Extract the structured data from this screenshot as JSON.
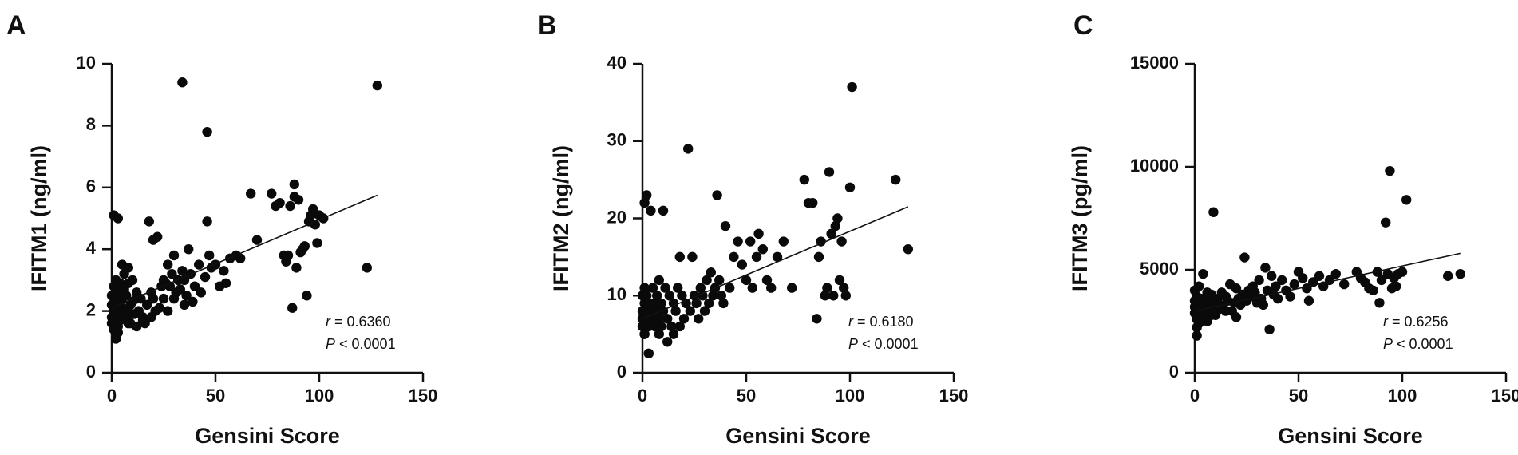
{
  "chart_data": [
    {
      "type": "scatter",
      "panel_label": "A",
      "xlabel": "Gensini Score",
      "ylabel": "IFITM1 (ng/ml)",
      "xlim": [
        0,
        150
      ],
      "ylim": [
        0,
        10
      ],
      "xticks": [
        0,
        50,
        100,
        150
      ],
      "yticks": [
        0,
        2,
        4,
        6,
        8,
        10
      ],
      "xtick_labels": [
        "0",
        "50",
        "100",
        "150"
      ],
      "ytick_labels": [
        "0",
        "2",
        "4",
        "6",
        "8",
        "10"
      ],
      "fit_line": {
        "x": [
          0,
          128
        ],
        "y": [
          2.1,
          5.75
        ]
      },
      "stat_r_symbol": "r",
      "stat_r_value": "= 0.6360",
      "stat_p_symbol": "P",
      "stat_p_value": "< 0.0001",
      "points": {
        "x": [
          0,
          0,
          0,
          0,
          1,
          1,
          1,
          1,
          2,
          2,
          2,
          2,
          3,
          3,
          3,
          4,
          4,
          4,
          5,
          5,
          5,
          6,
          6,
          7,
          7,
          8,
          8,
          8,
          9,
          9,
          10,
          10,
          11,
          12,
          12,
          13,
          14,
          15,
          16,
          17,
          18,
          19,
          19,
          20,
          20,
          21,
          22,
          23,
          24,
          25,
          25,
          26,
          27,
          27,
          28,
          29,
          30,
          30,
          31,
          32,
          33,
          34,
          35,
          35,
          36,
          37,
          38,
          39,
          40,
          42,
          43,
          45,
          46,
          47,
          48,
          50,
          52,
          54,
          55,
          57,
          60,
          62,
          67,
          70,
          77,
          79,
          81,
          83,
          84,
          85,
          86,
          87,
          88,
          88,
          89,
          90,
          91,
          92,
          93,
          94,
          95,
          96,
          97,
          98,
          99,
          100,
          102,
          123,
          128,
          34,
          46,
          3,
          5,
          8,
          10,
          12,
          15
        ],
        "y": [
          1.8,
          2.2,
          2.5,
          1.6,
          2.0,
          2.8,
          1.4,
          5.1,
          1.1,
          2.3,
          3.0,
          1.9,
          2.6,
          1.5,
          5.0,
          2.1,
          2.9,
          1.7,
          3.5,
          2.4,
          1.9,
          2.7,
          3.2,
          2.0,
          2.5,
          1.8,
          2.9,
          3.4,
          1.6,
          2.2,
          2.3,
          3.0,
          1.9,
          2.6,
          1.5,
          2.0,
          2.4,
          1.7,
          1.6,
          2.2,
          4.9,
          1.8,
          2.6,
          2.4,
          4.3,
          2.0,
          4.4,
          2.1,
          2.8,
          2.4,
          3.0,
          2.9,
          2.0,
          3.5,
          2.8,
          3.2,
          2.4,
          3.8,
          2.6,
          3.0,
          2.7,
          3.3,
          2.2,
          3.0,
          2.5,
          4.0,
          3.2,
          2.3,
          2.8,
          3.5,
          2.6,
          3.1,
          4.9,
          3.8,
          3.4,
          3.5,
          2.8,
          3.3,
          2.9,
          3.7,
          3.8,
          3.7,
          5.8,
          4.3,
          5.8,
          5.4,
          5.5,
          3.8,
          3.6,
          3.8,
          5.4,
          2.1,
          6.1,
          5.7,
          3.4,
          5.6,
          3.9,
          4.0,
          4.1,
          2.5,
          4.9,
          5.1,
          5.3,
          4.8,
          4.2,
          5.1,
          5.0,
          3.4,
          9.3,
          9.4,
          7.8,
          1.3,
          2.1,
          1.6,
          1.9,
          2.4,
          1.8
        ]
      }
    },
    {
      "type": "scatter",
      "panel_label": "B",
      "xlabel": "Gensini Score",
      "ylabel": "IFITM2 (ng/ml)",
      "xlim": [
        0,
        150
      ],
      "ylim": [
        0,
        40
      ],
      "xticks": [
        0,
        50,
        100,
        150
      ],
      "yticks": [
        0,
        10,
        20,
        30,
        40
      ],
      "xtick_labels": [
        "0",
        "50",
        "100",
        "150"
      ],
      "ytick_labels": [
        "0",
        "10",
        "20",
        "30",
        "40"
      ],
      "fit_line": {
        "x": [
          0,
          128
        ],
        "y": [
          7.0,
          21.5
        ]
      },
      "stat_r_symbol": "r",
      "stat_r_value": "= 0.6180",
      "stat_p_symbol": "P",
      "stat_p_value": "< 0.0001",
      "points": {
        "x": [
          0,
          0,
          0,
          0,
          1,
          1,
          1,
          1,
          2,
          2,
          2,
          2,
          3,
          3,
          3,
          4,
          4,
          5,
          5,
          6,
          6,
          7,
          7,
          8,
          8,
          9,
          10,
          10,
          11,
          12,
          13,
          14,
          15,
          16,
          17,
          18,
          19,
          20,
          21,
          22,
          23,
          24,
          25,
          26,
          27,
          28,
          29,
          30,
          31,
          32,
          33,
          34,
          35,
          36,
          37,
          38,
          39,
          40,
          42,
          44,
          46,
          48,
          50,
          52,
          53,
          55,
          56,
          58,
          60,
          62,
          65,
          68,
          72,
          78,
          80,
          82,
          84,
          85,
          86,
          88,
          89,
          90,
          91,
          92,
          93,
          94,
          95,
          96,
          97,
          98,
          100,
          101,
          122,
          128,
          1,
          2,
          3,
          8,
          9,
          12,
          15,
          18
        ],
        "y": [
          7,
          8,
          10,
          6,
          9,
          11,
          5,
          22,
          7,
          10,
          8,
          23,
          6,
          9,
          2.5,
          21,
          8,
          7,
          11,
          9,
          6,
          8,
          10,
          7,
          12,
          9,
          8,
          21,
          11,
          7,
          10,
          6,
          9,
          8,
          11,
          15,
          10,
          7,
          9,
          29,
          8,
          15,
          10,
          9,
          7,
          11,
          10,
          8,
          12,
          9,
          13,
          10,
          11,
          23,
          12,
          10,
          9,
          19,
          11,
          15,
          17,
          14,
          12,
          17,
          11,
          15,
          18,
          16,
          12,
          11,
          15,
          17,
          11,
          25,
          22,
          22,
          7,
          15,
          17,
          10,
          11,
          26,
          18,
          10,
          19,
          20,
          12,
          17,
          11,
          10,
          24,
          37,
          25,
          16,
          5,
          6,
          7,
          5,
          6,
          4,
          5,
          6
        ]
      }
    },
    {
      "type": "scatter",
      "panel_label": "C",
      "xlabel": "Gensini Score",
      "ylabel": "IFITM3 (pg/ml)",
      "xlim": [
        0,
        150
      ],
      "ylim": [
        0,
        15000
      ],
      "xticks": [
        0,
        50,
        100,
        150
      ],
      "yticks": [
        0,
        5000,
        10000,
        15000
      ],
      "xtick_labels": [
        "0",
        "50",
        "100",
        "150"
      ],
      "ytick_labels": [
        "0",
        "5000",
        "10000",
        "15000"
      ],
      "fit_line": {
        "x": [
          0,
          128
        ],
        "y": [
          3000,
          5800
        ]
      },
      "stat_r_symbol": "r",
      "stat_r_value": "= 0.6256",
      "stat_p_symbol": "P",
      "stat_p_value": "< 0.0001",
      "points": {
        "x": [
          0,
          0,
          0,
          0,
          1,
          1,
          1,
          1,
          2,
          2,
          2,
          3,
          3,
          3,
          4,
          4,
          5,
          5,
          6,
          6,
          7,
          7,
          8,
          8,
          9,
          10,
          10,
          11,
          12,
          13,
          14,
          15,
          16,
          17,
          18,
          19,
          20,
          21,
          22,
          23,
          24,
          25,
          26,
          27,
          28,
          29,
          30,
          31,
          32,
          33,
          34,
          35,
          36,
          37,
          38,
          39,
          40,
          42,
          44,
          46,
          48,
          50,
          52,
          54,
          55,
          57,
          60,
          62,
          65,
          68,
          72,
          78,
          80,
          82,
          84,
          86,
          88,
          89,
          90,
          92,
          93,
          94,
          95,
          96,
          97,
          98,
          100,
          102,
          122,
          128,
          9,
          1,
          2,
          3,
          5,
          6,
          8,
          12,
          15,
          20
        ],
        "y": [
          3200,
          2900,
          3500,
          4000,
          2600,
          3100,
          1800,
          3700,
          3300,
          2800,
          4200,
          3000,
          3600,
          2500,
          3400,
          4800,
          3100,
          2700,
          3900,
          3300,
          2900,
          3500,
          3200,
          3800,
          3000,
          3400,
          2800,
          3600,
          3300,
          3900,
          3100,
          3700,
          3500,
          4300,
          3000,
          3400,
          4100,
          3600,
          3300,
          3800,
          5600,
          3500,
          4000,
          3700,
          4200,
          3900,
          3400,
          4500,
          3600,
          3300,
          5100,
          4000,
          2100,
          4700,
          3800,
          4200,
          3600,
          4500,
          4000,
          3700,
          4300,
          4900,
          4600,
          4100,
          3500,
          4400,
          4700,
          4200,
          4500,
          4800,
          4300,
          4900,
          4600,
          4400,
          4100,
          4000,
          4900,
          3400,
          4500,
          7300,
          4800,
          9800,
          4100,
          4600,
          4200,
          4800,
          4900,
          8400,
          4700,
          4800,
          7800,
          2200,
          2400,
          2600,
          2900,
          2500,
          2800,
          3100,
          3000,
          2700
        ]
      }
    }
  ]
}
